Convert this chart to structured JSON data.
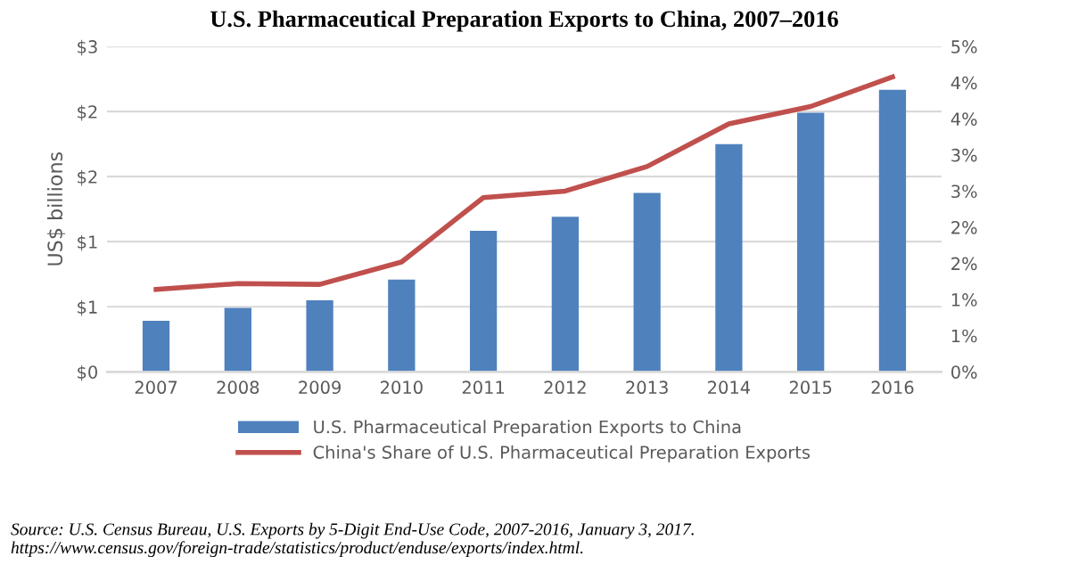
{
  "chart_data": {
    "type": "bar",
    "title": "U.S. Pharmaceutical Preparation Exports to China, 2007–2016",
    "ylabel": "US$ billions",
    "categories": [
      "2007",
      "2008",
      "2009",
      "2010",
      "2011",
      "2012",
      "2013",
      "2014",
      "2015",
      "2016"
    ],
    "series": [
      {
        "name": "U.S. Pharmaceutical Preparation Exports to China",
        "color": "#4f81bd",
        "values": [
          0.47,
          0.59,
          0.66,
          0.85,
          1.3,
          1.43,
          1.65,
          2.1,
          2.39,
          2.6
        ]
      },
      {
        "name": "China's Share of U.S. Pharmaceutical Preparation Exports",
        "type": "line",
        "axis": "y2",
        "color": "#c0504d",
        "values": [
          1.14,
          1.22,
          1.21,
          1.52,
          2.41,
          2.5,
          2.84,
          3.43,
          3.67,
          4.08
        ]
      }
    ],
    "ylim": [
      0,
      3
    ],
    "yticks": [
      {
        "value": 0,
        "label": "$0"
      },
      {
        "value": 0.6,
        "label": "$1"
      },
      {
        "value": 1.2,
        "label": "$1"
      },
      {
        "value": 1.8,
        "label": "$2"
      },
      {
        "value": 2.4,
        "label": "$2"
      },
      {
        "value": 3,
        "label": "$3"
      }
    ],
    "y2lim": [
      0,
      4.5
    ],
    "y2ticks": [
      {
        "value": 0,
        "label": "0%"
      },
      {
        "value": 0.5,
        "label": "1%"
      },
      {
        "value": 1,
        "label": "1%"
      },
      {
        "value": 1.5,
        "label": "2%"
      },
      {
        "value": 2,
        "label": "2%"
      },
      {
        "value": 2.5,
        "label": "3%"
      },
      {
        "value": 3,
        "label": "3%"
      },
      {
        "value": 3.5,
        "label": "4%"
      },
      {
        "value": 4,
        "label": "4%"
      },
      {
        "value": 4.5,
        "label": "5%"
      }
    ],
    "grid": "y",
    "legend": "bottom",
    "annotations": [
      "Source: U.S. Census Bureau, U.S. Exports by 5-Digit End-Use Code, 2007-2016, January 3, 2017. https://www.census.gov/foreign-trade/statistics/product/enduse/exports/index.html."
    ]
  }
}
